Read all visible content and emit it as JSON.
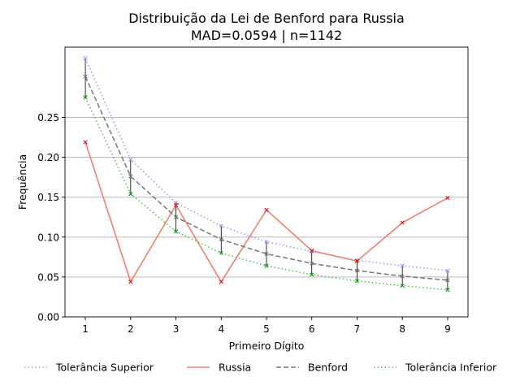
{
  "chart_data": {
    "type": "line",
    "title": "Distribuição da Lei de Benford para Russia",
    "subtitle": "MAD=0.0594 | n=1142",
    "xlabel": "Primeiro Dígito",
    "ylabel": "Frequência",
    "x": [
      1,
      2,
      3,
      4,
      5,
      6,
      7,
      8,
      9
    ],
    "xlim": [
      0.55,
      9.45
    ],
    "ylim": [
      0,
      0.338
    ],
    "xticks": [
      "1",
      "2",
      "3",
      "4",
      "5",
      "6",
      "7",
      "8",
      "9"
    ],
    "yticks": [
      "0.00",
      "0.05",
      "0.10",
      "0.15",
      "0.20",
      "0.25"
    ],
    "grid": "horizontal",
    "legend_position": "below",
    "series": [
      {
        "name": "Tolerância Superior",
        "color": "#9999ee",
        "style": "dotted",
        "marker": "x",
        "values": [
          0.324,
          0.197,
          0.143,
          0.114,
          0.094,
          0.082,
          0.071,
          0.064,
          0.058
        ]
      },
      {
        "name": "Russia",
        "color": "#f08070",
        "style": "solid",
        "marker": "x",
        "marker_color": "#dd1111",
        "values": [
          0.219,
          0.044,
          0.14,
          0.044,
          0.134,
          0.083,
          0.07,
          0.118,
          0.149
        ]
      },
      {
        "name": "Benford",
        "color": "#777777",
        "style": "dashed",
        "marker": "x",
        "values": [
          0.301,
          0.176,
          0.125,
          0.097,
          0.079,
          0.067,
          0.058,
          0.051,
          0.046
        ]
      },
      {
        "name": "Tolerância Inferior",
        "color": "#55bb55",
        "style": "dotted",
        "marker": "x",
        "marker_color": "#119911",
        "values": [
          0.275,
          0.154,
          0.107,
          0.08,
          0.064,
          0.053,
          0.045,
          0.039,
          0.034
        ]
      }
    ],
    "error_bars": "Tolerância Inferior to Tolerância Superior at each digit"
  }
}
